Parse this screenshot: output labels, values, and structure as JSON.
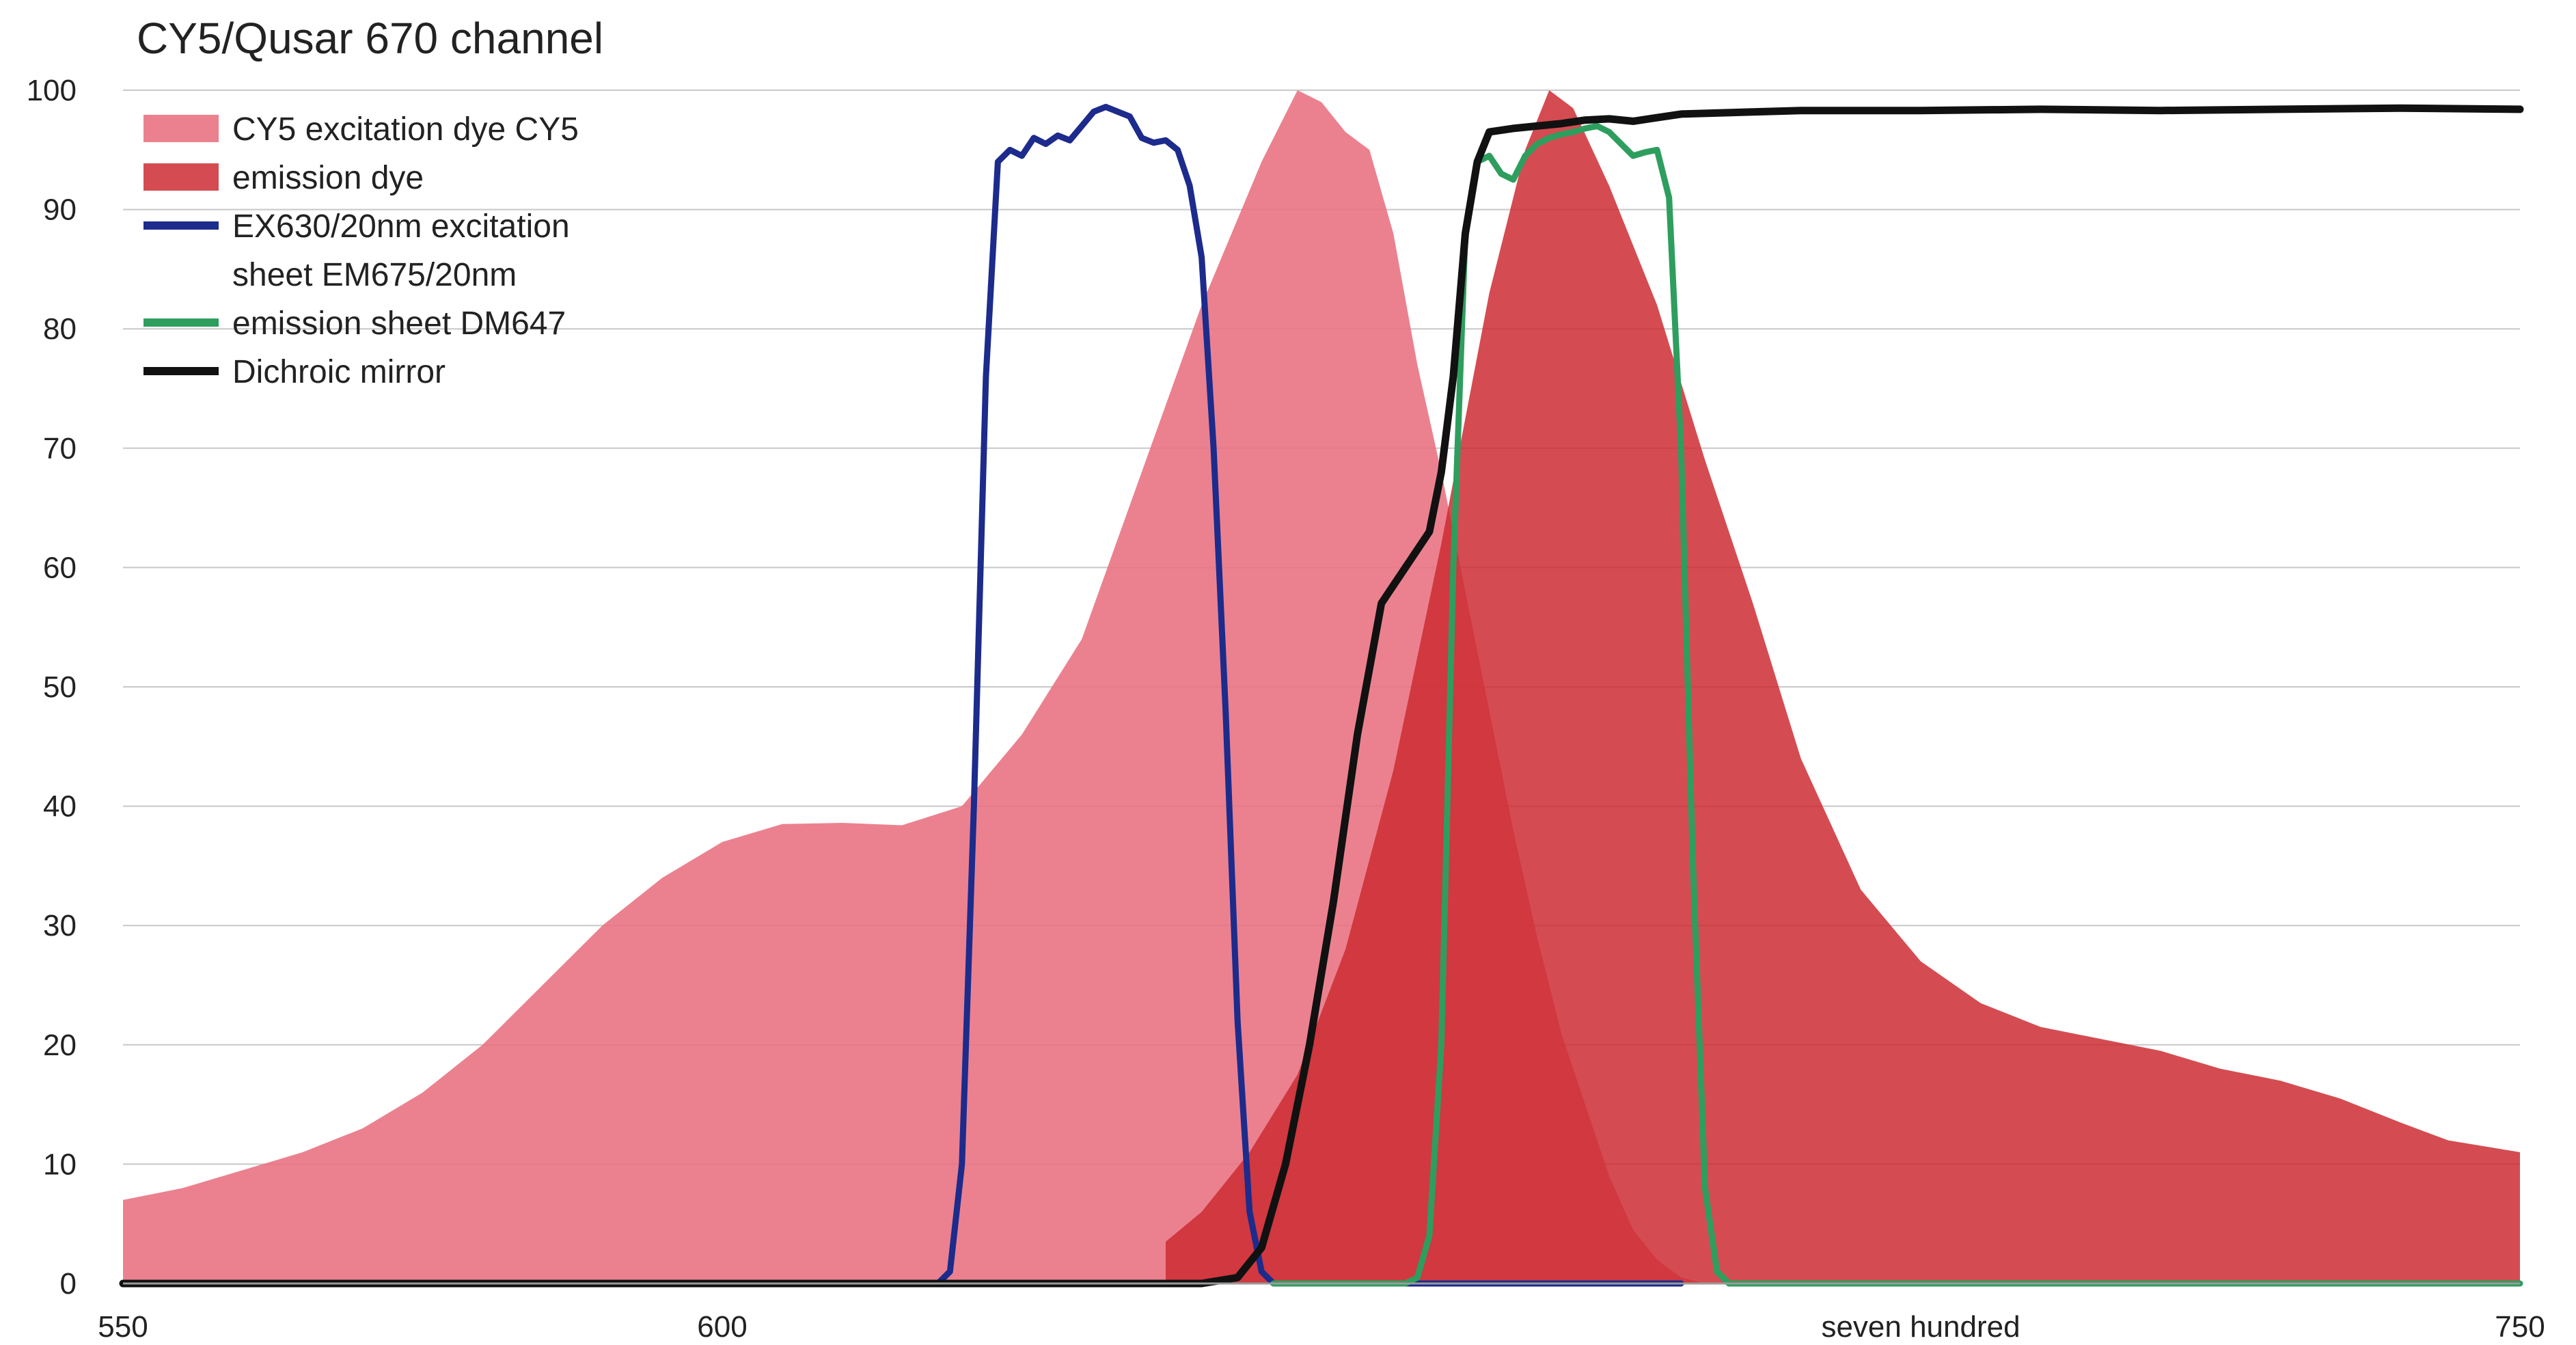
{
  "chart_data": {
    "type": "area",
    "title": "CY5/Qusar 670 channel",
    "xlabel": "",
    "ylabel": "",
    "xlim": [
      550,
      750
    ],
    "ylim": [
      0,
      100
    ],
    "grid": true,
    "legend_position": "top-left",
    "x_ticks": [
      {
        "value": 550,
        "label": "550"
      },
      {
        "value": 600,
        "label": "600"
      },
      {
        "value": 700,
        "label": "seven hundred"
      },
      {
        "value": 750,
        "label": "750"
      }
    ],
    "y_ticks": [
      {
        "value": 0,
        "label": "0"
      },
      {
        "value": 10,
        "label": "10"
      },
      {
        "value": 20,
        "label": "20"
      },
      {
        "value": 30,
        "label": "30"
      },
      {
        "value": 40,
        "label": "40"
      },
      {
        "value": 50,
        "label": "50"
      },
      {
        "value": 60,
        "label": "60"
      },
      {
        "value": 70,
        "label": "70"
      },
      {
        "value": 80,
        "label": "80"
      },
      {
        "value": 90,
        "label": "90"
      },
      {
        "value": 100,
        "label": "100"
      }
    ],
    "legend": [
      {
        "label": "CY5 excitation dye CY5",
        "series": "excitation",
        "kind": "area"
      },
      {
        "label": "emission dye",
        "series": "emission",
        "kind": "area"
      },
      {
        "label": "EX630/20nm excitation",
        "series": "ex_filter",
        "kind": "line"
      },
      {
        "label": "sheet EM675/20nm",
        "series": "",
        "kind": "none"
      },
      {
        "label": "emission sheet DM647",
        "series": "em_filter",
        "kind": "line"
      },
      {
        "label": "Dichroic mirror",
        "series": "dichroic",
        "kind": "line"
      }
    ],
    "series": [
      {
        "id": "excitation",
        "kind": "area",
        "color": "#e8707f",
        "opacity": 0.88,
        "points": [
          [
            550,
            7
          ],
          [
            555,
            8
          ],
          [
            560,
            9.5
          ],
          [
            565,
            11
          ],
          [
            570,
            13
          ],
          [
            575,
            16
          ],
          [
            580,
            20
          ],
          [
            585,
            25
          ],
          [
            590,
            30
          ],
          [
            595,
            34
          ],
          [
            600,
            37
          ],
          [
            605,
            38.5
          ],
          [
            610,
            38.6
          ],
          [
            615,
            38.4
          ],
          [
            620,
            40
          ],
          [
            625,
            46
          ],
          [
            630,
            54
          ],
          [
            635,
            68
          ],
          [
            640,
            82
          ],
          [
            645,
            94
          ],
          [
            648,
            100
          ],
          [
            650,
            99
          ],
          [
            652,
            96.5
          ],
          [
            654,
            95
          ],
          [
            656,
            88
          ],
          [
            658,
            77
          ],
          [
            660,
            68
          ],
          [
            662,
            58
          ],
          [
            664,
            48
          ],
          [
            666,
            38
          ],
          [
            668,
            29
          ],
          [
            670,
            21
          ],
          [
            672,
            15
          ],
          [
            674,
            9
          ],
          [
            676,
            4.5
          ],
          [
            678,
            2
          ],
          [
            680,
            0.5
          ],
          [
            682,
            0
          ]
        ]
      },
      {
        "id": "emission",
        "kind": "area",
        "color": "#cc2a30",
        "opacity": 0.84,
        "points": [
          [
            637,
            0
          ],
          [
            637,
            3.5
          ],
          [
            640,
            6
          ],
          [
            644,
            11
          ],
          [
            648,
            17.5
          ],
          [
            652,
            28
          ],
          [
            656,
            43
          ],
          [
            660,
            62
          ],
          [
            664,
            83
          ],
          [
            667,
            95
          ],
          [
            669,
            100
          ],
          [
            671,
            98.5
          ],
          [
            674,
            92
          ],
          [
            678,
            82
          ],
          [
            682,
            69
          ],
          [
            686,
            57
          ],
          [
            690,
            44
          ],
          [
            695,
            33
          ],
          [
            700,
            27
          ],
          [
            705,
            23.5
          ],
          [
            710,
            21.5
          ],
          [
            715,
            20.5
          ],
          [
            720,
            19.5
          ],
          [
            725,
            18
          ],
          [
            730,
            17
          ],
          [
            735,
            15.5
          ],
          [
            740,
            13.5
          ],
          [
            744,
            12
          ],
          [
            750,
            11
          ],
          [
            750,
            0
          ]
        ]
      },
      {
        "id": "ex_filter",
        "kind": "line",
        "color": "#1c2b8c",
        "width": 9,
        "points": [
          [
            550,
            0
          ],
          [
            618,
            0
          ],
          [
            619,
            1
          ],
          [
            620,
            10
          ],
          [
            621,
            40
          ],
          [
            622,
            76
          ],
          [
            623,
            94
          ],
          [
            624,
            95
          ],
          [
            625,
            94.5
          ],
          [
            626,
            96
          ],
          [
            627,
            95.5
          ],
          [
            628,
            96.2
          ],
          [
            629,
            95.8
          ],
          [
            630,
            97
          ],
          [
            631,
            98.2
          ],
          [
            632,
            98.6
          ],
          [
            633,
            98.2
          ],
          [
            634,
            97.8
          ],
          [
            635,
            96
          ],
          [
            636,
            95.6
          ],
          [
            637,
            95.8
          ],
          [
            638,
            95
          ],
          [
            639,
            92
          ],
          [
            640,
            86
          ],
          [
            641,
            70
          ],
          [
            642,
            48
          ],
          [
            643,
            22
          ],
          [
            644,
            6
          ],
          [
            645,
            1
          ],
          [
            646,
            0
          ],
          [
            680,
            0
          ]
        ]
      },
      {
        "id": "em_filter",
        "kind": "line",
        "color": "#2e9e5e",
        "width": 9,
        "points": [
          [
            646,
            0
          ],
          [
            657,
            0
          ],
          [
            658,
            0.5
          ],
          [
            659,
            4
          ],
          [
            660,
            20
          ],
          [
            661,
            60
          ],
          [
            662,
            88
          ],
          [
            663,
            94
          ],
          [
            664,
            94.5
          ],
          [
            665,
            93
          ],
          [
            666,
            92.5
          ],
          [
            667,
            94.5
          ],
          [
            668,
            95.5
          ],
          [
            669,
            96
          ],
          [
            670,
            96.3
          ],
          [
            671,
            96.5
          ],
          [
            672,
            96.8
          ],
          [
            673,
            97
          ],
          [
            674,
            96.5
          ],
          [
            675,
            95.5
          ],
          [
            676,
            94.5
          ],
          [
            677,
            94.8
          ],
          [
            678,
            95
          ],
          [
            679,
            91
          ],
          [
            680,
            70
          ],
          [
            681,
            35
          ],
          [
            682,
            8
          ],
          [
            683,
            1
          ],
          [
            684,
            0
          ],
          [
            750,
            0
          ]
        ]
      },
      {
        "id": "dichroic",
        "kind": "line",
        "color": "#111111",
        "width": 11,
        "points": [
          [
            550,
            0
          ],
          [
            600,
            0
          ],
          [
            640,
            0
          ],
          [
            643,
            0.5
          ],
          [
            645,
            3
          ],
          [
            647,
            10
          ],
          [
            649,
            20
          ],
          [
            651,
            32
          ],
          [
            653,
            46
          ],
          [
            655,
            57
          ],
          [
            657,
            60
          ],
          [
            659,
            63
          ],
          [
            660,
            68
          ],
          [
            661,
            76
          ],
          [
            662,
            88
          ],
          [
            663,
            94
          ],
          [
            664,
            96.5
          ],
          [
            666,
            96.8
          ],
          [
            668,
            97
          ],
          [
            670,
            97.2
          ],
          [
            672,
            97.5
          ],
          [
            674,
            97.6
          ],
          [
            676,
            97.4
          ],
          [
            680,
            98
          ],
          [
            690,
            98.3
          ],
          [
            700,
            98.3
          ],
          [
            710,
            98.4
          ],
          [
            720,
            98.3
          ],
          [
            730,
            98.4
          ],
          [
            740,
            98.5
          ],
          [
            750,
            98.4
          ]
        ]
      }
    ]
  }
}
